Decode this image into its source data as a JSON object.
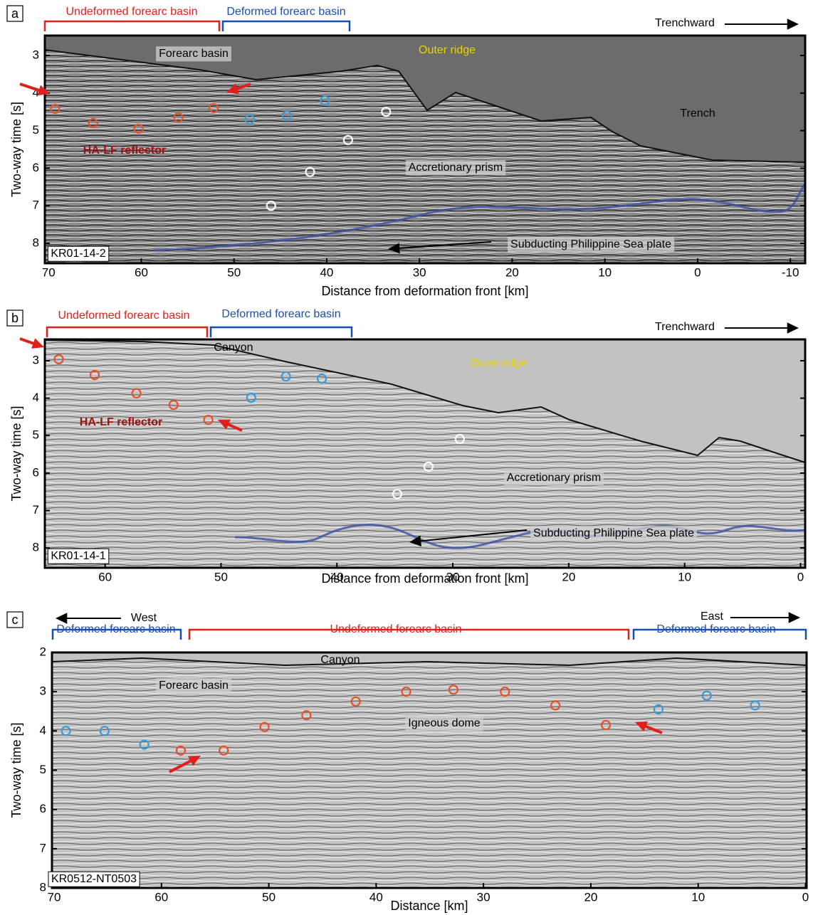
{
  "chart_data": [
    {
      "type": "scatter",
      "panel_label": "a",
      "xlabel": "Distance from deformation front [km]",
      "ylabel": "Two-way time [s]",
      "xlim": [
        70.4,
        -11.6
      ],
      "ylim": [
        2.47,
        8.53
      ],
      "y_inverted": true,
      "xticks": [
        70,
        60,
        50,
        40,
        30,
        20,
        10,
        0,
        -10
      ],
      "yticks": [
        3,
        4,
        5,
        6,
        7,
        8
      ],
      "series": [
        {
          "color": "#e8502a",
          "x": [
            69.3,
            65.2,
            60.3,
            56.0,
            52.2
          ],
          "values": [
            4.42,
            4.8,
            4.95,
            4.65,
            4.4
          ]
        },
        {
          "color": "#3a9ad9",
          "x": [
            48.3,
            44.3,
            40.2
          ],
          "values": [
            4.7,
            4.6,
            4.2
          ]
        },
        {
          "color": "#ffffff",
          "x": [
            33.6,
            37.7,
            41.8,
            46.0
          ],
          "values": [
            4.5,
            5.25,
            6.1,
            7.0
          ]
        }
      ],
      "annotations": [
        "Undeformed forearc basin",
        "Deformed forearc basin",
        "Trenchward",
        "Forearc basin",
        "Outer ridge",
        "Trench",
        "HA-LF reflector",
        "Accretionary prism",
        "Subducting Philippine Sea plate",
        "KR01-14-2"
      ]
    },
    {
      "type": "scatter",
      "panel_label": "b",
      "xlabel": "Distance from deformation front [km]",
      "ylabel": "Two-way time [s]",
      "xlim": [
        65.2,
        -0.4
      ],
      "ylim": [
        2.43,
        8.53
      ],
      "y_inverted": true,
      "xticks": [
        60,
        50,
        40,
        30,
        20,
        10,
        0
      ],
      "yticks": [
        3,
        4,
        5,
        6,
        7,
        8
      ],
      "series": [
        {
          "color": "#e8502a",
          "x": [
            64.0,
            60.9,
            57.3,
            54.1,
            51.1
          ],
          "values": [
            2.96,
            3.38,
            3.87,
            4.18,
            4.58
          ]
        },
        {
          "color": "#3a9ad9",
          "x": [
            47.4,
            44.4,
            41.3
          ],
          "values": [
            3.99,
            3.42,
            3.48
          ]
        },
        {
          "color": "#ffffff",
          "x": [
            29.4,
            32.1,
            34.8
          ],
          "values": [
            5.09,
            5.83,
            6.56
          ]
        }
      ],
      "annotations": [
        "Undeformed forearc basin",
        "Deformed forearc basin",
        "Trenchward",
        "Canyon",
        "Outer ridge",
        "HA-LF reflector",
        "Accretionary prism",
        "Subducting Philippine Sea plate",
        "KR01-14-1"
      ]
    },
    {
      "type": "scatter",
      "panel_label": "c",
      "xlabel": "Distance [km]",
      "ylabel": "Two-way time [s]",
      "xlim": [
        70.2,
        -0.1
      ],
      "ylim": [
        2,
        8
      ],
      "y_inverted": true,
      "xticks": [
        70,
        60,
        50,
        40,
        30,
        20,
        10,
        0
      ],
      "yticks": [
        2,
        3,
        4,
        5,
        6,
        7,
        8
      ],
      "series": [
        {
          "color": "#e8502a",
          "x": [
            58.2,
            54.2,
            50.4,
            46.5,
            41.9,
            37.2,
            32.8,
            28.0,
            23.3,
            18.6
          ],
          "values": [
            4.5,
            4.5,
            3.9,
            3.6,
            3.25,
            3.0,
            2.95,
            3.0,
            3.35,
            3.85
          ]
        },
        {
          "color": "#3a9ad9",
          "x": [
            68.9,
            65.3,
            61.6,
            13.7,
            9.2,
            4.7
          ],
          "values": [
            4.0,
            4.0,
            4.35,
            3.45,
            3.1,
            3.35
          ]
        }
      ],
      "annotations": [
        "West",
        "East",
        "Deformed forearc basin",
        "Undeformed forearc basin",
        "Deformed forearc basin",
        "Canyon",
        "Forearc basin",
        "Igneous dome",
        "KR0512-NT0503"
      ]
    }
  ]
}
